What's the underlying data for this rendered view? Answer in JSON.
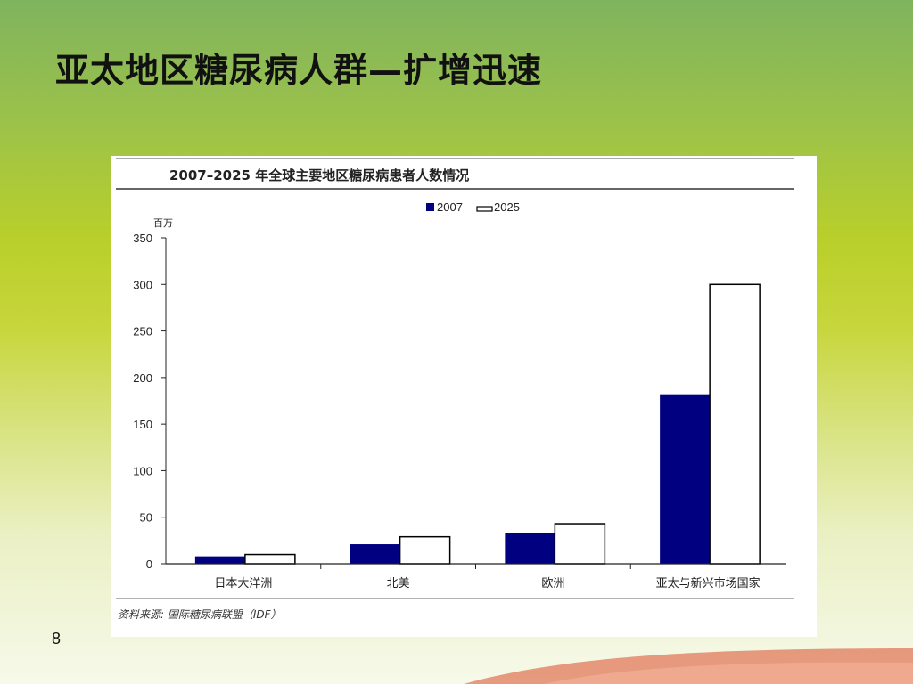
{
  "slide": {
    "title": "亚太地区糖尿病人群—扩增迅速",
    "page_number": "8"
  },
  "chart_data": {
    "type": "bar",
    "title": "2007–2025 年全球主要地区糖尿病患者人数情况",
    "unit_label": "百万",
    "categories": [
      "日本大洋洲",
      "北美",
      "欧洲",
      "亚太与新兴市场国家"
    ],
    "series": [
      {
        "name": "2007",
        "values": [
          8,
          21,
          33,
          182
        ],
        "color": "#000080"
      },
      {
        "name": "2025",
        "values": [
          10,
          29,
          43,
          300
        ],
        "color": "#ffffff"
      }
    ],
    "ylim": [
      0,
      350
    ],
    "yticks": [
      0,
      50,
      100,
      150,
      200,
      250,
      300,
      350
    ],
    "legend_position": "top-center",
    "grid": false,
    "source": "资料来源: 国际糖尿病联盟（IDF）"
  }
}
